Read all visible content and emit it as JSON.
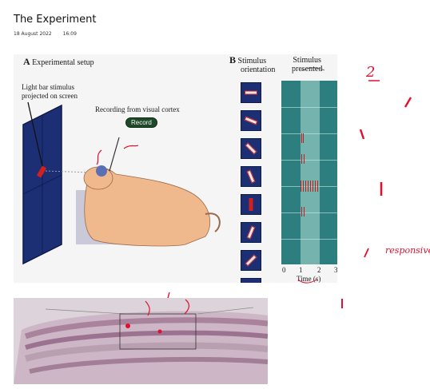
{
  "page": {
    "title": "The Experiment",
    "date": "18 August 2022",
    "time": "16:09"
  },
  "figure": {
    "panel_a_letter": "A",
    "panel_a_title": "Experimental setup",
    "panel_b_letter": "B",
    "panel_b_title_1": "Stimulus",
    "panel_b_title_2": "orientation",
    "stim_presented_1": "Stimulus",
    "stim_presented_2": "presented",
    "light_bar_1": "Light bar stimulus",
    "light_bar_2": "projected on screen",
    "recording": "Recording from visual cortex",
    "record_badge": "Record",
    "x_ticks": [
      "0",
      "1",
      "2",
      "3"
    ],
    "x_label": "Time (s)"
  },
  "annotations": {
    "number": "2",
    "note": "responsive"
  },
  "colors": {
    "accent": "#e01030",
    "screen": "#1d2f74",
    "raster": "#2c7f7e"
  }
}
